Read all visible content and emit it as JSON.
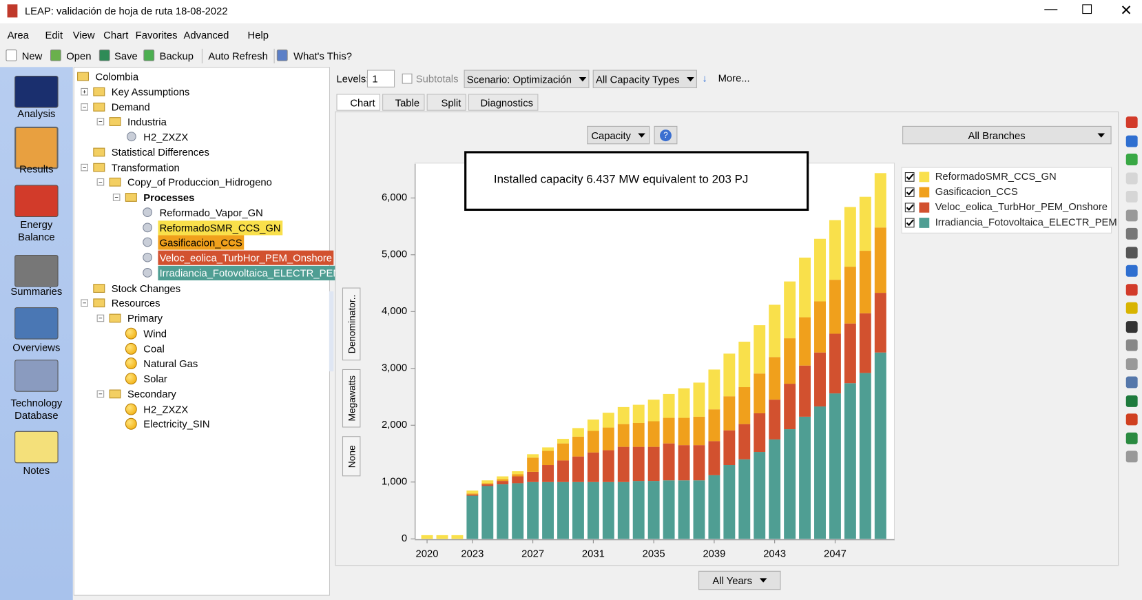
{
  "window": {
    "title": "LEAP: validación de hoja de ruta 18-08-2022"
  },
  "menu": [
    "Area",
    "Edit",
    "View",
    "Chart",
    "Favorites",
    "Advanced",
    "Help"
  ],
  "toolbar": [
    "New",
    "Open",
    "Save",
    "Backup",
    "Auto Refresh",
    "What's This?"
  ],
  "sidebar": [
    "Analysis",
    "Results",
    "Energy Balance",
    "Summaries",
    "Overviews",
    "Technology Database",
    "Notes"
  ],
  "tree": {
    "label": "Colombia",
    "icon": "folder",
    "children": [
      {
        "label": "Key Assumptions",
        "icon": "folder",
        "children": []
      },
      {
        "label": "Demand",
        "icon": "folder",
        "children": [
          {
            "label": "Industria",
            "icon": "folder",
            "children": [
              {
                "label": "H2_ZXZX",
                "icon": "gear"
              }
            ]
          }
        ]
      },
      {
        "label": "Statistical Differences",
        "icon": "folder"
      },
      {
        "label": "Transformation",
        "icon": "folder",
        "children": [
          {
            "label": "Copy_of Produccion_Hidrogeno",
            "icon": "folder",
            "children": [
              {
                "label": "Processes",
                "icon": "folder",
                "bold": true,
                "children": [
                  {
                    "label": "Reformado_Vapor_GN",
                    "icon": "gear"
                  },
                  {
                    "label": "ReformadoSMR_CCS_GN",
                    "icon": "gear",
                    "color": "#f9e04b"
                  },
                  {
                    "label": "Gasificacion_CCS",
                    "icon": "gear",
                    "color": "#f0a01c"
                  },
                  {
                    "label": "Veloc_eolica_TurbHor_PEM_Onshore",
                    "icon": "gear",
                    "color": "#d2512f",
                    "text_color": "#ffffff"
                  },
                  {
                    "label": "Irradiancia_Fotovoltaica_ELECTR_PEM",
                    "icon": "gear",
                    "color": "#4f9e93",
                    "text_color": "#ffffff"
                  }
                ]
              }
            ]
          }
        ]
      },
      {
        "label": "Stock Changes",
        "icon": "folder"
      },
      {
        "label": "Resources",
        "icon": "folder",
        "children": [
          {
            "label": "Primary",
            "icon": "folder",
            "children": [
              {
                "label": "Wind",
                "icon": "ball"
              },
              {
                "label": "Coal",
                "icon": "ball"
              },
              {
                "label": "Natural Gas",
                "icon": "ball"
              },
              {
                "label": "Solar",
                "icon": "ball"
              }
            ]
          },
          {
            "label": "Secondary",
            "icon": "folder",
            "children": [
              {
                "label": "H2_ZXZX",
                "icon": "ball"
              },
              {
                "label": "Electricity_SIN",
                "icon": "ball"
              }
            ]
          }
        ]
      }
    ]
  },
  "controls": {
    "levels_label": "Levels:",
    "levels": 1,
    "subtotals": "Subtotals",
    "scenario": "Scenario: Optimización",
    "capacity_types": "All Capacity Types",
    "more": "More...",
    "tabs": [
      "Chart",
      "Table",
      "Split",
      "Diagnostics"
    ],
    "variable": "Capacity",
    "branches": "All Branches",
    "side_tabs": [
      "Denominator..",
      "Megawatts",
      "None"
    ],
    "years": "All Years"
  },
  "chart_data": {
    "type": "stacked_bar",
    "annotation": "Installed capacity 6.437 MW equivalent to 203 PJ",
    "categories": [
      "2020",
      null,
      null,
      "2023",
      null,
      null,
      null,
      "2027",
      null,
      null,
      null,
      "2031",
      null,
      null,
      null,
      "2035",
      null,
      null,
      null,
      "2039",
      null,
      null,
      null,
      "2043",
      null,
      null,
      null,
      "2047",
      null,
      null,
      null
    ],
    "series": [
      {
        "name": "ReformadoSMR_CCS_GN",
        "color": "#f9e04b",
        "values": [
          65,
          65,
          65,
          50,
          50,
          50,
          50,
          60,
          60,
          80,
          150,
          200,
          260,
          300,
          320,
          380,
          420,
          520,
          600,
          700,
          750,
          800,
          850,
          920,
          1000,
          1050,
          1100,
          1050,
          1050,
          950,
          957
        ]
      },
      {
        "name": "Gasificacion_CCS",
        "color": "#f0a01c",
        "values": [
          0,
          0,
          0,
          20,
          20,
          30,
          40,
          250,
          250,
          300,
          350,
          380,
          400,
          400,
          420,
          450,
          450,
          480,
          500,
          560,
          600,
          650,
          700,
          750,
          800,
          850,
          900,
          950,
          1000,
          1100,
          1150
        ]
      },
      {
        "name": "Veloc_eolica_TurbHor_PEM_Onshore",
        "color": "#d2512f",
        "values": [
          0,
          0,
          0,
          20,
          30,
          60,
          120,
          180,
          300,
          380,
          450,
          520,
          560,
          620,
          600,
          600,
          650,
          620,
          620,
          600,
          610,
          620,
          680,
          700,
          800,
          900,
          950,
          1050,
          1050,
          1050,
          1050
        ]
      },
      {
        "name": "Irradiancia_Fotovoltaica_ELECTR_PEM",
        "color": "#4f9e93",
        "values": [
          0,
          0,
          0,
          760,
          930,
          960,
          980,
          1000,
          1000,
          1000,
          1000,
          1000,
          1000,
          1000,
          1020,
          1020,
          1030,
          1030,
          1030,
          1120,
          1300,
          1400,
          1530,
          1750,
          1930,
          2150,
          2330,
          2560,
          2740,
          2920,
          3280
        ]
      }
    ],
    "ylim": [
      0,
      6600
    ],
    "yticks": [
      0,
      {
        "value": 1000,
        "label": "1,000"
      },
      {
        "value": 2000,
        "label": "2,000"
      },
      {
        "value": 3000,
        "label": "3,000"
      },
      {
        "value": 4000,
        "label": "4,000"
      },
      {
        "value": 5000,
        "label": "5,000"
      },
      {
        "value": 6000,
        "label": "6,000"
      }
    ],
    "legend": "top-right"
  }
}
